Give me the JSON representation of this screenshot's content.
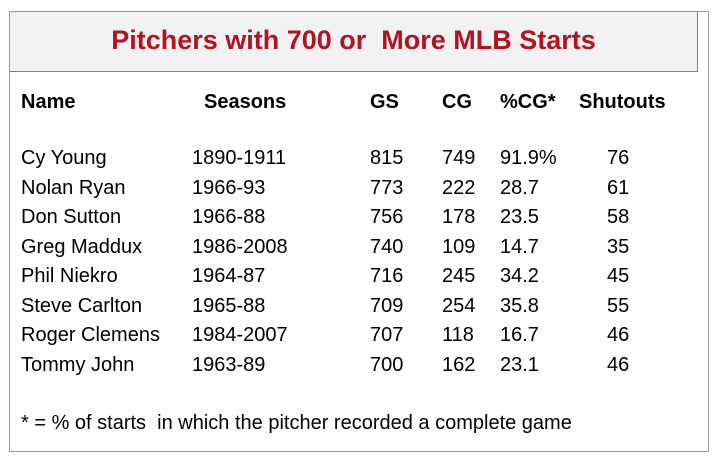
{
  "title": "Pitchers with 700 or  More MLB Starts",
  "columns": [
    "Name",
    "Seasons",
    "GS",
    "CG",
    "%CG*",
    "Shutouts"
  ],
  "rows": [
    [
      "Cy Young",
      "1890-1911",
      "815",
      "749",
      "91.9%",
      "76"
    ],
    [
      "Nolan Ryan",
      "1966-93",
      "773",
      "222",
      "28.7",
      "61"
    ],
    [
      "Don Sutton",
      "1966-88",
      "756",
      "178",
      "23.5",
      "58"
    ],
    [
      "Greg Maddux",
      "1986-2008",
      "740",
      "109",
      "14.7",
      "35"
    ],
    [
      "Phil Niekro",
      "1964-87",
      "716",
      "245",
      "34.2",
      "45"
    ],
    [
      "Steve Carlton",
      "1965-88",
      "709",
      "254",
      "35.8",
      "55"
    ],
    [
      "Roger Clemens",
      "1984-2007",
      "707",
      "118",
      "16.7",
      "46"
    ],
    [
      "Tommy John",
      "1963-89",
      "700",
      "162",
      "23.1",
      "46"
    ]
  ],
  "footnote": "* = % of starts  in which the pitcher recorded a complete game",
  "colors": {
    "title": "#b3121f",
    "title_background": "#f2f2f5",
    "border": "#7f7f7f"
  }
}
